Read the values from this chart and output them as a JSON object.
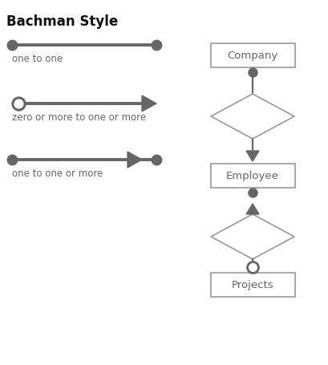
{
  "title": "Bachman Style",
  "title_fontsize": 12,
  "bg_color": "#ffffff",
  "symbol_color": "#666666",
  "line_width": 2.8,
  "notation_labels": [
    "one to one",
    "zero or more to one or more",
    "one to one or more"
  ],
  "box_labels": [
    "Company",
    "Employee",
    "Projects"
  ],
  "box_edge_color": "#999999",
  "text_color": "#666666",
  "fig_w": 4.09,
  "fig_h": 4.56,
  "dpi": 100
}
